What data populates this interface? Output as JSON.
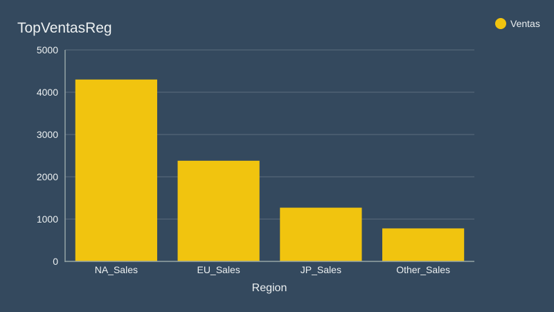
{
  "chart_data": {
    "type": "bar",
    "title": "TopVentasReg",
    "xlabel": "Region",
    "ylabel": "",
    "categories": [
      "NA_Sales",
      "EU_Sales",
      "JP_Sales",
      "Other_Sales"
    ],
    "series": [
      {
        "name": "Ventas",
        "values": [
          4300,
          2380,
          1270,
          780
        ]
      }
    ],
    "ylim": [
      0,
      5000
    ],
    "yticks": [
      "0",
      "1000",
      "2000",
      "3000",
      "4000",
      "5000"
    ],
    "grid": true,
    "legend_position": "top-right",
    "colors": {
      "background": "#34495e",
      "bar": "#f1c40f",
      "grid": "#5d6d7e",
      "axis": "#95a5a6",
      "text": "#ecf0f1"
    }
  }
}
